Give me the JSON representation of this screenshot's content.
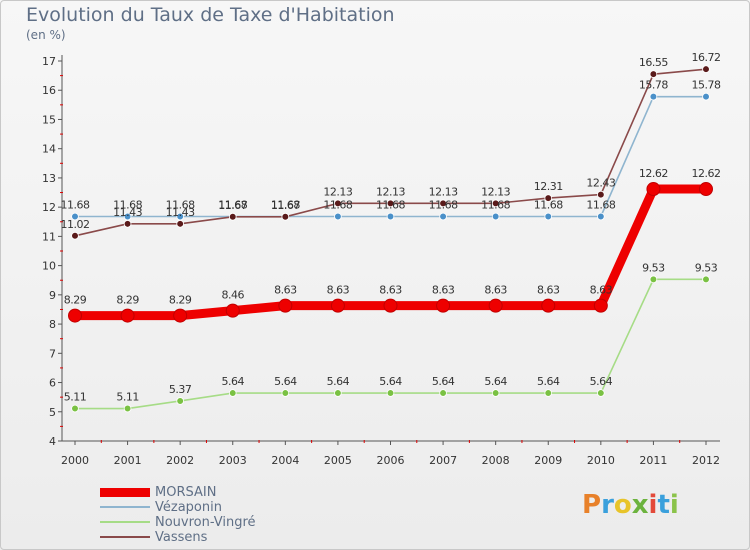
{
  "title": "Evolution du Taux de Taxe d'Habitation",
  "subtitle": "(en %)",
  "brand": "Proxiti",
  "brand_colors": [
    "#e8812a",
    "#3aa0dc",
    "#e8c42a",
    "#6cb33e",
    "#e34a3a",
    "#3aa0dc",
    "#8bc34a"
  ],
  "chart_data": {
    "type": "line",
    "title": "Evolution du Taux de Taxe d'Habitation",
    "subtitle": "(en %)",
    "xlabel": "",
    "ylabel": "",
    "ylim": [
      4,
      17
    ],
    "yticks": [
      4,
      5,
      6,
      7,
      8,
      9,
      10,
      11,
      12,
      13,
      14,
      15,
      16,
      17
    ],
    "grid": false,
    "legend_position": "bottom-left",
    "x": [
      "2000",
      "2001",
      "2002",
      "2003",
      "2004",
      "2005",
      "2006",
      "2007",
      "2008",
      "2009",
      "2010",
      "2011",
      "2012"
    ],
    "series": [
      {
        "name": "MORSAIN",
        "color": "#ee0000",
        "values": [
          8.29,
          8.29,
          8.29,
          8.46,
          8.63,
          8.63,
          8.63,
          8.63,
          8.63,
          8.63,
          8.63,
          12.62,
          12.62
        ],
        "labels": [
          "8.29",
          "8.29",
          "8.29",
          "8.46",
          "8.63",
          "8.63",
          "8.63",
          "8.63",
          "8.63",
          "8.63",
          "8.63",
          "12.62",
          "12.62"
        ]
      },
      {
        "name": "Vézaponin",
        "color": "#8fb5cf",
        "marker_color": "#4a90c9",
        "values": [
          11.68,
          11.68,
          11.68,
          11.68,
          11.68,
          11.68,
          11.68,
          11.68,
          11.68,
          11.68,
          11.68,
          15.78,
          15.78
        ],
        "labels": [
          "11.68",
          "11.68",
          "11.68",
          "11.68",
          "11.68",
          "11.68",
          "11.68",
          "11.68",
          "11.68",
          "11.68",
          "11.68",
          "15.78",
          "15.78"
        ]
      },
      {
        "name": "Nouvron-Vingré",
        "color": "#a6dc86",
        "marker_color": "#7ac143",
        "values": [
          5.11,
          5.11,
          5.37,
          5.64,
          5.64,
          5.64,
          5.64,
          5.64,
          5.64,
          5.64,
          5.64,
          9.53,
          9.53
        ],
        "labels": [
          "5.11",
          "5.11",
          "5.37",
          "5.64",
          "5.64",
          "5.64",
          "5.64",
          "5.64",
          "5.64",
          "5.64",
          "5.64",
          "9.53",
          "9.53"
        ]
      },
      {
        "name": "Vassens",
        "color": "#8a4a4a",
        "marker_color": "#5a1a1a",
        "values": [
          11.02,
          11.43,
          11.43,
          11.67,
          11.67,
          12.13,
          12.13,
          12.13,
          12.13,
          12.31,
          12.43,
          16.55,
          16.72
        ],
        "labels": [
          "11.02",
          "11.43",
          "11.43",
          "11.67",
          "11.67",
          "12.13",
          "12.13",
          "12.13",
          "12.13",
          "12.31",
          "12.43",
          "16.55",
          "16.72"
        ]
      }
    ]
  }
}
